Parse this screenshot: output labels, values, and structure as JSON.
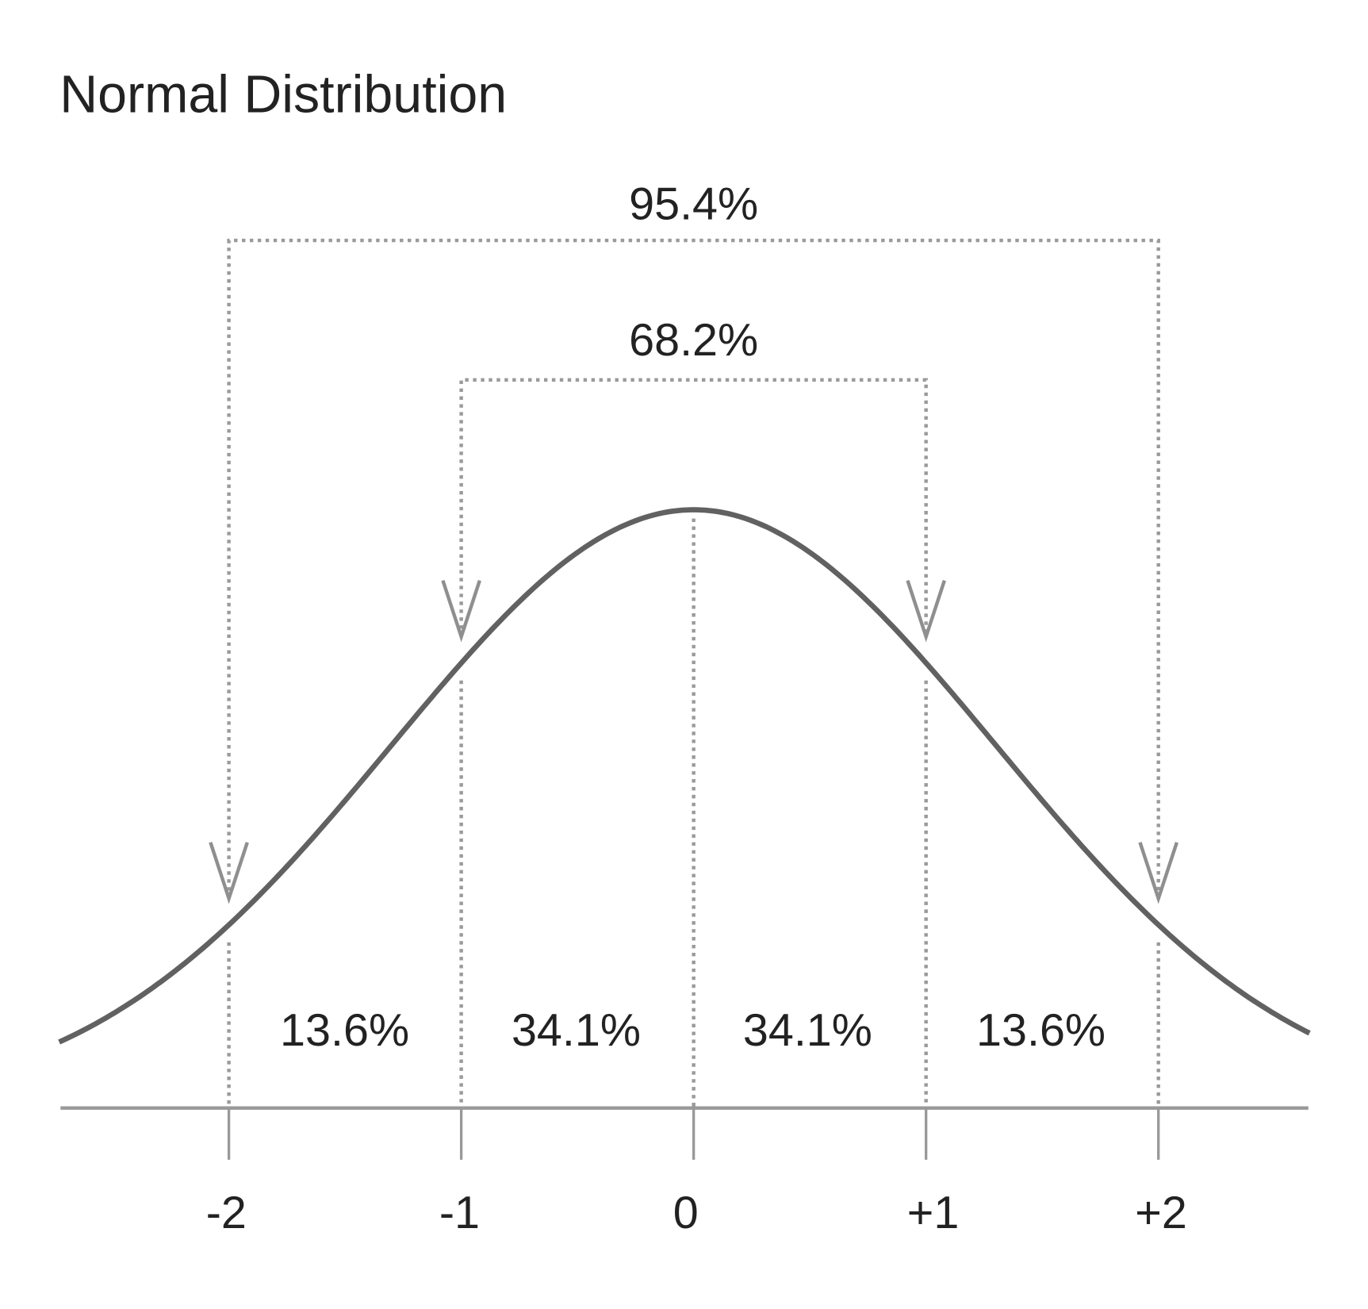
{
  "chart_data": {
    "type": "line",
    "title": "Normal Distribution",
    "xlabel": "",
    "ylabel": "",
    "x_ticks": [
      "-2",
      "-1",
      "0",
      "+1",
      "+2"
    ],
    "x_tick_values": [
      -2,
      -1,
      0,
      1,
      2
    ],
    "xlim": [
      -2.73,
      2.65
    ],
    "curve": "standard normal density",
    "grid": false,
    "colors": {
      "curve": "#616161",
      "guides": "#9a9a9a",
      "axis": "#999999",
      "text": "#222222"
    },
    "regions": [
      {
        "from": -2,
        "to": -1,
        "label": "13.6%"
      },
      {
        "from": -1,
        "to": 0,
        "label": "34.1%"
      },
      {
        "from": 0,
        "to": 1,
        "label": "34.1%"
      },
      {
        "from": 1,
        "to": 2,
        "label": "13.6%"
      }
    ],
    "brackets": [
      {
        "from": -2,
        "to": 2,
        "label": "95.4%"
      },
      {
        "from": -1,
        "to": 1,
        "label": "68.2%"
      }
    ]
  }
}
